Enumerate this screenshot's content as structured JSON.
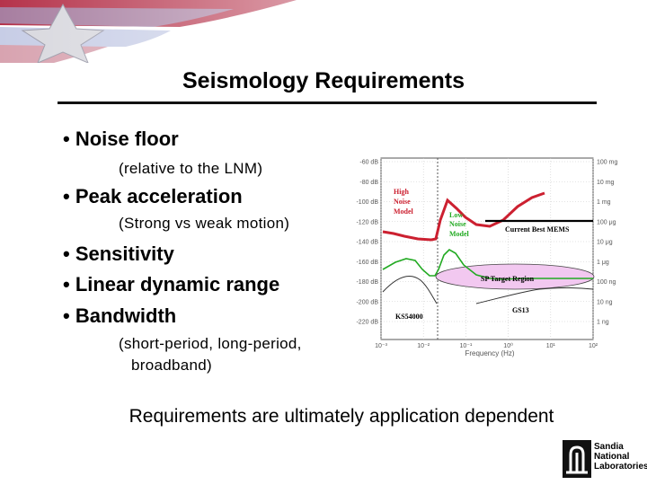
{
  "slide": {
    "title": "Seismology Requirements",
    "bullets": [
      {
        "text": "• Noise floor",
        "sub": "(relative to the LNM)"
      },
      {
        "text": "• Peak acceleration",
        "sub": "(Strong vs weak motion)"
      },
      {
        "text": "• Sensitivity"
      },
      {
        "text": "• Linear dynamic range"
      },
      {
        "text": "• Bandwidth",
        "sub": "(short-period, long-period,",
        "sub2": "broadband)"
      }
    ],
    "footer": "Requirements are ultimately application dependent"
  },
  "logo": {
    "line1": "Sandia",
    "line2": "National",
    "line3": "Laboratories"
  },
  "colors": {
    "red_curve": "#cc2030",
    "green_curve": "#22aa22",
    "target_fill": "#f2c8f0",
    "rule": "#111111"
  },
  "chart_data": {
    "type": "line",
    "left_axis_ticks": [
      "-60 dB",
      "-80 dB",
      "-100 dB",
      "-120 dB",
      "-140 dB",
      "-160 dB",
      "-180 dB",
      "-200 dB",
      "-220 dB"
    ],
    "right_axis_ticks": [
      "100 mg",
      "10 mg",
      "1 mg",
      "100 μg",
      "10 μg",
      "1 μg",
      "100 ng",
      "10 ng",
      "1 ng"
    ],
    "x_ticks": [
      "10⁻³",
      "10⁻²",
      "10⁻¹",
      "10⁰",
      "10¹",
      "10²"
    ],
    "xlabel": "Frequency (Hz)",
    "annotations": {
      "high_noise": [
        "High",
        "Noise",
        "Model"
      ],
      "low_noise": [
        "Low",
        "Noise",
        "Model"
      ],
      "current_best": "Current Best MEMS",
      "sp_target": "SP Target Region",
      "gs13": "GS13",
      "ks54000": "KS54000"
    }
  }
}
